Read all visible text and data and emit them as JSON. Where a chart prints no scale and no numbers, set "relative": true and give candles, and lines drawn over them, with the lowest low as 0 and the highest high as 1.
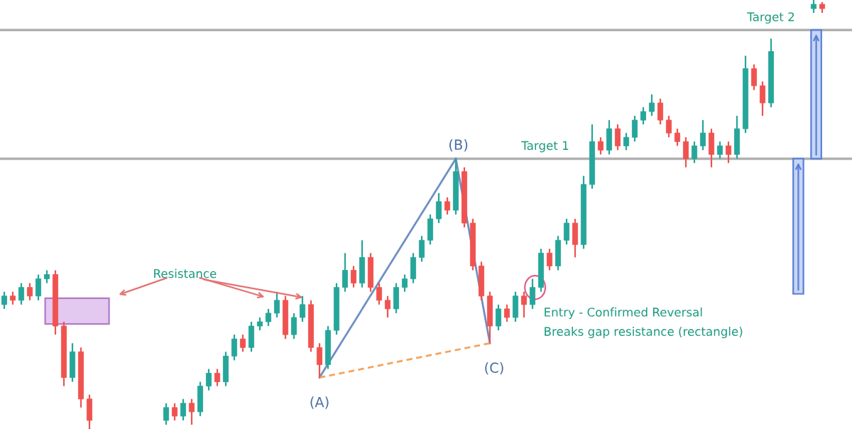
{
  "chart_data": {
    "type": "candlestick",
    "relative": true,
    "categories": [
      null,
      null,
      null,
      null,
      null,
      null,
      null,
      null,
      null,
      null,
      null,
      null,
      null,
      null,
      null,
      null,
      null,
      null,
      null,
      null,
      null,
      null,
      null,
      null,
      null,
      null,
      null,
      null,
      null,
      null,
      null,
      null,
      null,
      null,
      null,
      null,
      null,
      null,
      null,
      null,
      null,
      null,
      null,
      null,
      null,
      null,
      null,
      null,
      null,
      null,
      null,
      null,
      null,
      null,
      null,
      null,
      null,
      null,
      null,
      null,
      null,
      null,
      null,
      null,
      null,
      null,
      null,
      null,
      null,
      null,
      null,
      null,
      null,
      null,
      null,
      null,
      null,
      null,
      null,
      null,
      null,
      null,
      null,
      null,
      null,
      null,
      null,
      null,
      null,
      null,
      null,
      null,
      null,
      null,
      null,
      null,
      null
    ],
    "ohlc": [
      [
        0.29,
        0.32,
        0.28,
        0.31
      ],
      [
        0.31,
        0.32,
        0.29,
        0.3
      ],
      [
        0.3,
        0.34,
        0.29,
        0.33
      ],
      [
        0.33,
        0.34,
        0.3,
        0.31
      ],
      [
        0.31,
        0.36,
        0.3,
        0.35
      ],
      [
        0.35,
        0.37,
        0.34,
        0.36
      ],
      [
        0.36,
        0.37,
        0.22,
        0.24
      ],
      [
        0.24,
        0.25,
        0.1,
        0.12
      ],
      [
        0.12,
        0.2,
        0.11,
        0.18
      ],
      [
        0.18,
        0.19,
        0.05,
        0.07
      ],
      [
        0.07,
        0.08,
        0.0,
        0.02
      ],
      null,
      null,
      null,
      null,
      null,
      null,
      null,
      null,
      [
        0.02,
        0.06,
        0.01,
        0.05
      ],
      [
        0.05,
        0.06,
        0.02,
        0.03
      ],
      [
        0.03,
        0.07,
        0.02,
        0.06
      ],
      [
        0.06,
        0.07,
        0.01,
        0.04
      ],
      [
        0.04,
        0.11,
        0.03,
        0.1
      ],
      [
        0.1,
        0.14,
        0.09,
        0.13
      ],
      [
        0.13,
        0.14,
        0.1,
        0.11
      ],
      [
        0.11,
        0.18,
        0.1,
        0.17
      ],
      [
        0.17,
        0.22,
        0.16,
        0.21
      ],
      [
        0.21,
        0.22,
        0.18,
        0.19
      ],
      [
        0.19,
        0.25,
        0.18,
        0.24
      ],
      [
        0.24,
        0.26,
        0.23,
        0.25
      ],
      [
        0.25,
        0.28,
        0.24,
        0.27
      ],
      [
        0.27,
        0.32,
        0.26,
        0.3
      ],
      [
        0.3,
        0.31,
        0.21,
        0.22
      ],
      [
        0.22,
        0.27,
        0.21,
        0.26
      ],
      [
        0.26,
        0.31,
        0.25,
        0.29
      ],
      [
        0.29,
        0.3,
        0.18,
        0.19
      ],
      [
        0.19,
        0.2,
        0.12,
        0.15
      ],
      [
        0.15,
        0.24,
        0.14,
        0.23
      ],
      [
        0.23,
        0.34,
        0.22,
        0.33
      ],
      [
        0.33,
        0.41,
        0.32,
        0.37
      ],
      [
        0.37,
        0.38,
        0.33,
        0.34
      ],
      [
        0.34,
        0.44,
        0.33,
        0.4
      ],
      [
        0.4,
        0.41,
        0.32,
        0.33
      ],
      [
        0.33,
        0.34,
        0.29,
        0.3
      ],
      [
        0.3,
        0.31,
        0.26,
        0.28
      ],
      [
        0.28,
        0.34,
        0.27,
        0.33
      ],
      [
        0.33,
        0.36,
        0.32,
        0.35
      ],
      [
        0.35,
        0.41,
        0.34,
        0.4
      ],
      [
        0.4,
        0.45,
        0.39,
        0.44
      ],
      [
        0.44,
        0.5,
        0.43,
        0.49
      ],
      [
        0.49,
        0.55,
        0.48,
        0.53
      ],
      [
        0.53,
        0.54,
        0.5,
        0.51
      ],
      [
        0.51,
        0.63,
        0.5,
        0.6
      ],
      [
        0.6,
        0.61,
        0.47,
        0.48
      ],
      [
        0.48,
        0.49,
        0.37,
        0.38
      ],
      [
        0.38,
        0.39,
        0.3,
        0.31
      ],
      [
        0.31,
        0.32,
        0.2,
        0.24
      ],
      [
        0.24,
        0.29,
        0.23,
        0.28
      ],
      [
        0.28,
        0.29,
        0.25,
        0.26
      ],
      [
        0.26,
        0.32,
        0.25,
        0.31
      ],
      [
        0.31,
        0.32,
        0.26,
        0.29
      ],
      [
        0.29,
        0.35,
        0.28,
        0.33
      ],
      [
        0.33,
        0.42,
        0.32,
        0.41
      ],
      [
        0.41,
        0.42,
        0.37,
        0.38
      ],
      [
        0.38,
        0.45,
        0.37,
        0.44
      ],
      [
        0.44,
        0.49,
        0.43,
        0.48
      ],
      [
        0.48,
        0.49,
        0.4,
        0.43
      ],
      [
        0.43,
        0.59,
        0.42,
        0.57
      ],
      [
        0.57,
        0.71,
        0.56,
        0.67
      ],
      [
        0.67,
        0.68,
        0.64,
        0.65
      ],
      [
        0.65,
        0.72,
        0.64,
        0.7
      ],
      [
        0.7,
        0.71,
        0.65,
        0.66
      ],
      [
        0.66,
        0.69,
        0.65,
        0.68
      ],
      [
        0.68,
        0.73,
        0.67,
        0.72
      ],
      [
        0.72,
        0.75,
        0.71,
        0.74
      ],
      [
        0.74,
        0.78,
        0.73,
        0.76
      ],
      [
        0.76,
        0.77,
        0.71,
        0.72
      ],
      [
        0.72,
        0.73,
        0.68,
        0.69
      ],
      [
        0.69,
        0.7,
        0.66,
        0.67
      ],
      [
        0.67,
        0.68,
        0.61,
        0.63
      ],
      [
        0.63,
        0.67,
        0.62,
        0.66
      ],
      [
        0.66,
        0.72,
        0.65,
        0.69
      ],
      [
        0.69,
        0.7,
        0.61,
        0.64
      ],
      [
        0.64,
        0.67,
        0.63,
        0.66
      ],
      [
        0.66,
        0.67,
        0.62,
        0.64
      ],
      [
        0.64,
        0.73,
        0.63,
        0.7
      ],
      [
        0.7,
        0.87,
        0.69,
        0.84
      ],
      [
        0.84,
        0.85,
        0.79,
        0.8
      ],
      [
        0.8,
        0.81,
        0.73,
        0.76
      ],
      [
        0.76,
        0.91,
        0.75,
        0.88
      ],
      null,
      null,
      null,
      null,
      [
        0.98,
        1.0,
        0.97,
        0.99
      ],
      [
        0.99,
        0.995,
        0.97,
        0.98
      ]
    ],
    "series": [
      {
        "type": "line",
        "values": [
          null,
          null,
          null,
          null,
          null,
          null,
          null,
          null,
          null,
          null,
          null,
          null,
          null,
          null,
          null,
          null,
          null,
          null,
          null,
          null,
          null,
          null,
          null,
          null,
          null,
          null,
          null,
          null,
          null,
          null,
          null,
          null,
          null,
          null,
          null,
          null,
          null,
          0.12,
          null,
          null,
          null,
          null,
          null,
          null,
          null,
          null,
          null,
          null,
          null,
          null,
          null,
          null,
          null,
          0.63,
          null,
          null,
          null,
          null,
          null,
          null,
          null,
          null,
          null,
          null,
          null,
          null,
          null,
          null,
          null,
          null,
          null,
          null,
          null,
          null,
          null,
          null,
          null,
          null,
          null,
          null,
          null,
          null,
          null,
          null,
          null,
          null,
          null,
          null,
          null,
          null,
          null,
          null,
          null,
          null,
          null,
          null,
          null
        ],
        "color": "#6f8fc4",
        "line_style": "solid"
      },
      {
        "type": "line",
        "values": [
          null,
          null,
          null,
          null,
          null,
          null,
          null,
          null,
          null,
          null,
          null,
          null,
          null,
          null,
          null,
          null,
          null,
          null,
          null,
          null,
          null,
          null,
          null,
          null,
          null,
          null,
          null,
          null,
          null,
          null,
          null,
          null,
          null,
          null,
          null,
          null,
          null,
          null,
          null,
          null,
          null,
          null,
          null,
          null,
          null,
          null,
          null,
          null,
          null,
          null,
          null,
          null,
          null,
          0.63,
          null,
          null,
          null,
          0.2,
          null,
          null,
          null,
          null,
          null,
          null,
          null,
          null,
          null,
          null,
          null,
          null,
          null,
          null,
          null,
          null,
          null,
          null,
          null,
          null,
          null,
          null,
          null,
          null,
          null,
          null,
          null,
          null,
          null,
          null,
          null,
          null,
          null,
          null,
          null,
          null,
          null,
          null,
          null
        ],
        "color": "#6f8fc4",
        "line_style": "solid"
      },
      {
        "type": "line",
        "values": [
          null,
          null,
          null,
          null,
          null,
          null,
          null,
          null,
          null,
          null,
          null,
          null,
          null,
          null,
          null,
          null,
          null,
          null,
          null,
          null,
          null,
          null,
          null,
          null,
          null,
          null,
          null,
          null,
          null,
          null,
          null,
          null,
          null,
          null,
          null,
          null,
          null,
          0.12,
          null,
          null,
          null,
          null,
          null,
          null,
          null,
          null,
          null,
          null,
          null,
          null,
          null,
          null,
          null,
          null,
          null,
          null,
          null,
          0.2,
          null,
          null,
          null,
          null,
          null,
          null,
          null,
          null,
          null,
          null,
          null,
          null,
          null,
          null,
          null,
          null,
          null,
          null,
          null,
          null,
          null,
          null,
          null,
          null,
          null,
          null,
          null,
          null,
          null,
          null,
          null,
          null,
          null,
          null,
          null,
          null,
          null,
          null,
          null
        ],
        "color": "#f4a460",
        "line_style": "dashed"
      }
    ],
    "ref_lines": [
      {
        "axis": "y",
        "value": 0.63,
        "label": "Target 1",
        "color": "#b0b0b0"
      },
      {
        "axis": "y",
        "value": 0.93,
        "label": "Target 2",
        "color": "#b0b0b0"
      }
    ],
    "annotations": [
      "Resistance",
      "(A)",
      "(B)",
      "(C)",
      "Entry - Confirmed Reversal",
      "Breaks gap resistance (rectangle)"
    ]
  }
}
